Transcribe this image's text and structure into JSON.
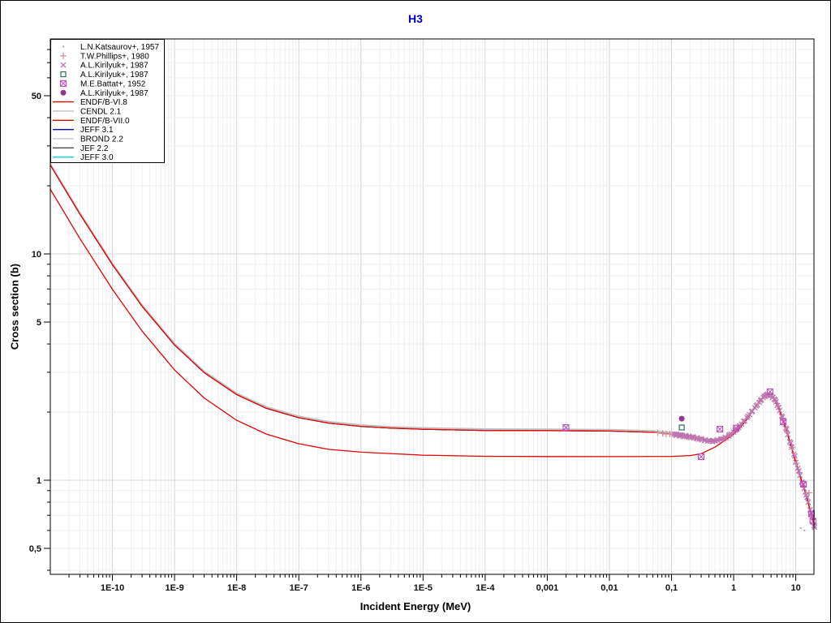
{
  "window": {
    "background": "#ffffff",
    "border_color": "#000000"
  },
  "chart_data": {
    "type": "line",
    "title": "H3",
    "title_color": "#0000cc",
    "xlabel": "Incident Energy (MeV)",
    "ylabel": "Cross section (b)",
    "x_scale": "log",
    "y_scale": "log",
    "xlim": [
      1e-11,
      20.8
    ],
    "ylim": [
      0.384,
      89.0
    ],
    "grid": true,
    "x_ticks": [
      {
        "value": 1e-10,
        "label": "1E-10"
      },
      {
        "value": 1e-09,
        "label": "1E-9"
      },
      {
        "value": 1e-08,
        "label": "1E-8"
      },
      {
        "value": 1e-07,
        "label": "1E-7"
      },
      {
        "value": 1e-06,
        "label": "1E-6"
      },
      {
        "value": 1e-05,
        "label": "1E-5"
      },
      {
        "value": 0.0001,
        "label": "1E-4"
      },
      {
        "value": 0.001,
        "label": "0,001"
      },
      {
        "value": 0.01,
        "label": "0,01"
      },
      {
        "value": 0.1,
        "label": "0,1"
      },
      {
        "value": 1,
        "label": "1"
      },
      {
        "value": 10,
        "label": "10"
      }
    ],
    "y_ticks": [
      {
        "value": 50,
        "label": "50"
      },
      {
        "value": 10,
        "label": "10"
      },
      {
        "value": 5,
        "label": "5"
      },
      {
        "value": 1,
        "label": "1"
      },
      {
        "value": 0.5,
        "label": "0,5"
      }
    ],
    "curves": {
      "upper": [
        [
          1e-11,
          24.7
        ],
        [
          3e-11,
          15.0
        ],
        [
          1e-10,
          8.96
        ],
        [
          3e-10,
          5.87
        ],
        [
          1e-09,
          3.96
        ],
        [
          3e-09,
          2.99
        ],
        [
          1e-08,
          2.39
        ],
        [
          3e-08,
          2.08
        ],
        [
          1e-07,
          1.89
        ],
        [
          3e-07,
          1.79
        ],
        [
          1e-06,
          1.73
        ],
        [
          3e-06,
          1.7
        ],
        [
          1e-05,
          1.68
        ],
        [
          3e-05,
          1.67
        ],
        [
          0.0001,
          1.66
        ],
        [
          0.001,
          1.657
        ],
        [
          0.01,
          1.65
        ],
        [
          0.05,
          1.63
        ],
        [
          0.1,
          1.6
        ],
        [
          0.2,
          1.55
        ],
        [
          0.3,
          1.51
        ],
        [
          0.4,
          1.49
        ],
        [
          0.5,
          1.49
        ],
        [
          0.7,
          1.53
        ],
        [
          1.0,
          1.63
        ],
        [
          1.5,
          1.83
        ],
        [
          2.0,
          2.02
        ],
        [
          2.5,
          2.18
        ],
        [
          3.0,
          2.32
        ],
        [
          3.4,
          2.38
        ],
        [
          4.0,
          2.36
        ],
        [
          4.5,
          2.28
        ],
        [
          5.0,
          2.16
        ],
        [
          6.0,
          1.9
        ],
        [
          7.0,
          1.68
        ],
        [
          8.0,
          1.48
        ],
        [
          10,
          1.2
        ],
        [
          12,
          1.02
        ],
        [
          14,
          0.9
        ],
        [
          17,
          0.74
        ],
        [
          20.8,
          0.6
        ]
      ],
      "lower": [
        [
          1e-11,
          19.3
        ],
        [
          3e-11,
          11.68
        ],
        [
          1e-10,
          6.97
        ],
        [
          3e-10,
          4.56
        ],
        [
          1e-09,
          3.07
        ],
        [
          3e-09,
          2.31
        ],
        [
          1e-08,
          1.84
        ],
        [
          3e-08,
          1.6
        ],
        [
          1e-07,
          1.45
        ],
        [
          3e-07,
          1.37
        ],
        [
          1e-06,
          1.33
        ],
        [
          1e-05,
          1.29
        ],
        [
          0.0001,
          1.276
        ],
        [
          0.001,
          1.272
        ],
        [
          0.01,
          1.271
        ],
        [
          0.1,
          1.275
        ],
        [
          0.2,
          1.285
        ],
        [
          0.3,
          1.31
        ],
        [
          0.5,
          1.4
        ],
        [
          0.7,
          1.49
        ],
        [
          1.0,
          1.6
        ],
        [
          1.3,
          1.72
        ],
        [
          1.7,
          1.88
        ],
        [
          2.0,
          2.02
        ],
        [
          2.5,
          2.18
        ],
        [
          3.0,
          2.32
        ],
        [
          3.4,
          2.38
        ],
        [
          4.0,
          2.36
        ],
        [
          4.5,
          2.28
        ],
        [
          5.0,
          2.16
        ],
        [
          6.0,
          1.9
        ],
        [
          7.0,
          1.68
        ],
        [
          8.0,
          1.48
        ],
        [
          10,
          1.2
        ],
        [
          12,
          1.02
        ],
        [
          14,
          0.9
        ],
        [
          17,
          0.74
        ],
        [
          20.8,
          0.6
        ]
      ]
    },
    "series": [
      {
        "name": "JEFF 3.0",
        "color": "#00d8dc",
        "curve": "upper",
        "dy": 0,
        "width": 1.2
      },
      {
        "name": "JEFF 3.1",
        "color": "#0000cc",
        "curve": "upper",
        "dy": 0,
        "width": 1.2
      },
      {
        "name": "JEF 2.2",
        "color": "#4a4a4a",
        "curve": "upper",
        "dy": 0,
        "width": 1.2
      },
      {
        "name": "BROND 2.2",
        "color": "#c8c8c8",
        "curve": "upper",
        "dy": -1,
        "width": 1.2
      },
      {
        "name": "CENDL 2.1",
        "color": "#bdbdbd",
        "curve": "upper",
        "dy": -2,
        "width": 1.2
      },
      {
        "name": "ENDF/B-VII.0",
        "color": "#e60000",
        "curve": "upper",
        "dy": 0,
        "width": 1.3
      },
      {
        "name": "ENDF/B-VI.8",
        "color": "#e60000",
        "curve": "lower",
        "dy": 0,
        "width": 1.3
      }
    ],
    "scatter": [
      {
        "name": "L.N.Katsaurov+, 1957",
        "marker": "dot",
        "color": "#b9a1ad",
        "points": [
          [
            12.0,
            0.615
          ],
          [
            13.8,
            0.6
          ]
        ]
      },
      {
        "name": "T.W.Phillips+, 1980",
        "marker": "plus",
        "color": "#d28aa0",
        "points": [
          [
            0.06,
            1.62
          ],
          [
            0.072,
            1.61
          ],
          [
            0.082,
            1.6
          ],
          [
            0.094,
            1.6
          ],
          [
            0.108,
            1.59
          ],
          [
            0.124,
            1.58
          ],
          [
            0.142,
            1.57
          ],
          [
            0.163,
            1.56
          ],
          [
            0.187,
            1.55
          ],
          [
            0.214,
            1.545
          ],
          [
            0.246,
            1.53
          ],
          [
            0.282,
            1.52
          ],
          [
            0.324,
            1.51
          ],
          [
            2.6,
            2.24
          ],
          [
            3.1,
            2.36
          ],
          [
            4.4,
            2.31
          ],
          [
            5.2,
            2.13
          ],
          [
            6.2,
            1.88
          ],
          [
            7.3,
            1.63
          ],
          [
            8.7,
            1.4
          ],
          [
            10.3,
            1.19
          ],
          [
            11.4,
            1.08
          ],
          [
            12.9,
            0.97
          ],
          [
            14.5,
            0.87
          ],
          [
            16.3,
            0.88
          ],
          [
            18.0,
            0.7
          ],
          [
            19.5,
            0.64
          ]
        ]
      },
      {
        "name": "A.L.Kirilyuk+, 1987 (x)",
        "marker": "x",
        "color": "#bd74b0",
        "points": [
          [
            0.11,
            1.6
          ],
          [
            0.12,
            1.58
          ],
          [
            0.13,
            1.59
          ],
          [
            0.14,
            1.57
          ],
          [
            0.15,
            1.58
          ],
          [
            0.16,
            1.56
          ],
          [
            0.17,
            1.57
          ],
          [
            0.19,
            1.55
          ],
          [
            0.21,
            1.55
          ],
          [
            0.23,
            1.54
          ],
          [
            0.25,
            1.53
          ],
          [
            0.28,
            1.52
          ],
          [
            0.31,
            1.51
          ],
          [
            0.34,
            1.5
          ],
          [
            0.38,
            1.49
          ],
          [
            0.42,
            1.49
          ],
          [
            0.46,
            1.48
          ],
          [
            0.51,
            1.49
          ],
          [
            0.56,
            1.5
          ],
          [
            0.62,
            1.51
          ],
          [
            0.68,
            1.52
          ],
          [
            0.75,
            1.54
          ],
          [
            0.83,
            1.57
          ],
          [
            0.91,
            1.6
          ],
          [
            1.0,
            1.63
          ],
          [
            1.1,
            1.67
          ],
          [
            1.2,
            1.71
          ],
          [
            1.35,
            1.77
          ],
          [
            1.5,
            1.83
          ],
          [
            1.65,
            1.89
          ],
          [
            1.8,
            1.95
          ],
          [
            2.0,
            2.02
          ],
          [
            2.2,
            2.09
          ],
          [
            2.4,
            2.15
          ],
          [
            2.6,
            2.21
          ],
          [
            2.8,
            2.27
          ],
          [
            3.0,
            2.32
          ],
          [
            3.2,
            2.35
          ],
          [
            3.4,
            2.38
          ],
          [
            3.6,
            2.38
          ],
          [
            3.8,
            2.37
          ],
          [
            4.0,
            2.36
          ],
          [
            4.2,
            2.32
          ],
          [
            4.5,
            2.28
          ],
          [
            4.8,
            2.22
          ],
          [
            5.1,
            2.14
          ],
          [
            5.5,
            2.03
          ],
          [
            5.9,
            1.92
          ],
          [
            6.4,
            1.81
          ],
          [
            6.9,
            1.7
          ],
          [
            7.4,
            1.59
          ],
          [
            8.0,
            1.48
          ],
          [
            8.6,
            1.4
          ],
          [
            9.3,
            1.3
          ],
          [
            10.0,
            1.2
          ],
          [
            10.8,
            1.13
          ],
          [
            11.7,
            1.05
          ],
          [
            12.6,
            0.98
          ],
          [
            13.6,
            0.92
          ],
          [
            14.7,
            0.86
          ],
          [
            15.8,
            0.8
          ],
          [
            17.0,
            0.74
          ],
          [
            18.3,
            0.69
          ],
          [
            19.7,
            0.63
          ],
          [
            0.12,
            1.6
          ],
          [
            0.14,
            1.59
          ],
          [
            0.165,
            1.575
          ],
          [
            0.19,
            1.565
          ],
          [
            0.22,
            1.555
          ],
          [
            0.26,
            1.54
          ],
          [
            0.3,
            1.525
          ],
          [
            0.35,
            1.51
          ],
          [
            0.4,
            1.5
          ],
          [
            0.47,
            1.5
          ],
          [
            0.54,
            1.51
          ],
          [
            0.63,
            1.525
          ],
          [
            0.73,
            1.55
          ],
          [
            0.85,
            1.59
          ],
          [
            1.05,
            1.66
          ],
          [
            1.25,
            1.74
          ],
          [
            1.45,
            1.82
          ],
          [
            1.7,
            1.92
          ],
          [
            1.95,
            2.01
          ],
          [
            2.3,
            2.13
          ],
          [
            2.7,
            2.25
          ],
          [
            3.1,
            2.35
          ],
          [
            3.5,
            2.4
          ],
          [
            3.9,
            2.38
          ],
          [
            4.3,
            2.33
          ],
          [
            4.7,
            2.26
          ],
          [
            5.3,
            2.1
          ],
          [
            6.1,
            1.9
          ],
          [
            7.1,
            1.68
          ],
          [
            8.3,
            1.46
          ],
          [
            9.6,
            1.28
          ],
          [
            11.2,
            1.1
          ],
          [
            13.0,
            0.96
          ],
          [
            15.2,
            0.84
          ],
          [
            17.6,
            0.72
          ],
          [
            20.0,
            0.62
          ]
        ]
      },
      {
        "name": "M.E.Battat+, 1952",
        "marker": "square-x",
        "color": "#c04cc0",
        "points": [
          [
            0.002,
            1.71
          ],
          [
            0.3,
            1.27
          ],
          [
            0.6,
            1.68
          ],
          [
            1.1,
            1.7
          ],
          [
            3.85,
            2.46
          ],
          [
            6.3,
            1.81
          ],
          [
            13.3,
            0.96
          ],
          [
            17.9,
            0.71
          ],
          [
            18.9,
            0.66
          ]
        ]
      },
      {
        "name": "A.L.Kirilyuk+, 1987 (square)",
        "marker": "square",
        "color": "#2f6f52",
        "points": [
          [
            0.146,
            1.71
          ]
        ]
      },
      {
        "name": "A.L.Kirilyuk+, 1987 (circle)",
        "marker": "circle",
        "color": "#8e3890",
        "points": [
          [
            0.146,
            1.87
          ]
        ]
      }
    ]
  },
  "legend": {
    "entries": [
      {
        "type": "dot",
        "color": "#b9a1ad",
        "label": "L.N.Katsaurov+, 1957"
      },
      {
        "type": "plus",
        "color": "#d28aa0",
        "label": "T.W.Phillips+, 1980"
      },
      {
        "type": "x",
        "color": "#bd74b0",
        "label": "A.L.Kirilyuk+, 1987"
      },
      {
        "type": "square",
        "color": "#2f6f52",
        "label": "A.L.Kirilyuk+, 1987"
      },
      {
        "type": "square-x",
        "color": "#c04cc0",
        "label": "M.E.Battat+, 1952"
      },
      {
        "type": "circle",
        "color": "#8e3890",
        "label": "A.L.Kirilyuk+, 1987"
      },
      {
        "type": "line",
        "color": "#e60000",
        "label": "ENDF/B-VI.8"
      },
      {
        "type": "line",
        "color": "#bdbdbd",
        "label": "CENDL 2.1"
      },
      {
        "type": "line",
        "color": "#e60000",
        "label": "ENDF/B-VII.0"
      },
      {
        "type": "line",
        "color": "#0000cc",
        "label": "JEFF 3.1"
      },
      {
        "type": "line",
        "color": "#c8c8c8",
        "label": "BROND 2.2"
      },
      {
        "type": "line",
        "color": "#4a4a4a",
        "label": "JEF 2.2"
      },
      {
        "type": "line",
        "color": "#00d8dc",
        "label": "JEFF 3.0"
      }
    ]
  },
  "style": {
    "grid_major_color": "#d3d3d3",
    "grid_minor_color": "#efefef",
    "frame_color": "#000000",
    "tick_label_color": "#111111"
  }
}
